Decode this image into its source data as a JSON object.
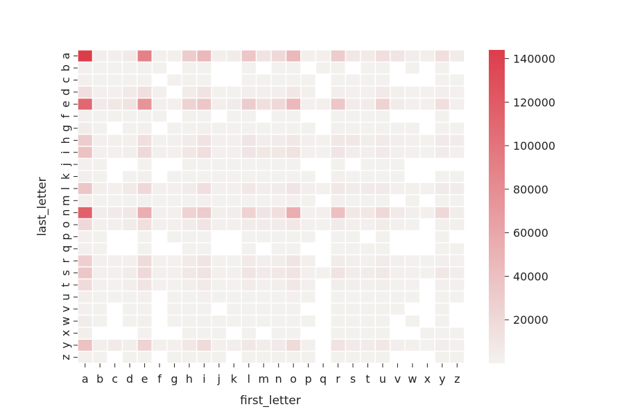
{
  "chart_data": {
    "type": "heatmap",
    "title": "",
    "xlabel": "first_letter",
    "ylabel": "last_letter",
    "x_categories": [
      "a",
      "b",
      "c",
      "d",
      "e",
      "f",
      "g",
      "h",
      "i",
      "j",
      "k",
      "l",
      "m",
      "n",
      "o",
      "p",
      "q",
      "r",
      "s",
      "t",
      "u",
      "v",
      "w",
      "x",
      "y",
      "z"
    ],
    "y_categories": [
      "a",
      "b",
      "c",
      "d",
      "e",
      "f",
      "g",
      "h",
      "i",
      "j",
      "k",
      "l",
      "m",
      "n",
      "o",
      "p",
      "q",
      "r",
      "s",
      "t",
      "u",
      "v",
      "w",
      "x",
      "y",
      "z"
    ],
    "matrix": [
      [
        144000,
        3000,
        3000,
        6000,
        90000,
        2000,
        2000,
        30000,
        45000,
        3000,
        5000,
        35000,
        12000,
        20000,
        45000,
        2000,
        2000,
        30000,
        8000,
        6000,
        15000,
        10000,
        4000,
        3000,
        15000,
        5000
      ],
      [
        2000,
        1000,
        1000,
        1000,
        2000,
        1000,
        null,
        1000,
        1000,
        null,
        null,
        1000,
        null,
        1000,
        1000,
        null,
        1000,
        1000,
        null,
        1000,
        1000,
        null,
        1000,
        null,
        1000,
        null
      ],
      [
        2000,
        1000,
        1000,
        1000,
        1000,
        null,
        1000,
        1000,
        1000,
        null,
        null,
        1000,
        1000,
        1000,
        1000,
        1000,
        null,
        1000,
        1000,
        1000,
        1000,
        null,
        null,
        null,
        1000,
        1000
      ],
      [
        15000,
        2000,
        2000,
        6000,
        15000,
        2000,
        null,
        5000,
        12000,
        1000,
        1000,
        3000,
        3000,
        3000,
        8000,
        2000,
        null,
        3000,
        2000,
        2000,
        6000,
        2000,
        1000,
        1000,
        3000,
        2000
      ],
      [
        110000,
        6000,
        8000,
        12000,
        75000,
        2000,
        2000,
        25000,
        35000,
        3000,
        5000,
        30000,
        15000,
        20000,
        45000,
        2000,
        2000,
        35000,
        5000,
        5000,
        25000,
        5000,
        2000,
        2000,
        15000,
        2000
      ],
      [
        2000,
        1000,
        1000,
        1000,
        1000,
        1000,
        null,
        1000,
        1000,
        null,
        1000,
        1000,
        null,
        1000,
        1000,
        null,
        null,
        1000,
        1000,
        1000,
        1000,
        null,
        null,
        null,
        1000,
        null
      ],
      [
        5000,
        1000,
        null,
        1000,
        2000,
        null,
        1000,
        1000,
        2000,
        1000,
        1000,
        1000,
        1000,
        1000,
        1000,
        1000,
        null,
        2000,
        1000,
        1000,
        1000,
        1000,
        1000,
        null,
        1000,
        1000
      ],
      [
        30000,
        2000,
        2000,
        2000,
        15000,
        1000,
        2000,
        5000,
        12000,
        2000,
        2000,
        10000,
        4000,
        5000,
        8000,
        2000,
        1000,
        8000,
        8000,
        4000,
        6000,
        3000,
        2000,
        1000,
        6000,
        5000
      ],
      [
        38000,
        2000,
        2000,
        3000,
        20000,
        2000,
        2000,
        8000,
        15000,
        2000,
        2000,
        10000,
        8000,
        8000,
        12000,
        2000,
        1000,
        10000,
        4000,
        3000,
        6000,
        2000,
        2000,
        1000,
        5000,
        2000
      ],
      [
        2000,
        1000,
        null,
        null,
        1000,
        null,
        null,
        1000,
        1000,
        1000,
        1000,
        1000,
        1000,
        1000,
        1000,
        null,
        null,
        1000,
        null,
        1000,
        1000,
        1000,
        null,
        null,
        null,
        null
      ],
      [
        3000,
        1000,
        null,
        1000,
        2000,
        null,
        1000,
        1000,
        1000,
        1000,
        1000,
        1000,
        1000,
        1000,
        1000,
        1000,
        null,
        2000,
        1000,
        1000,
        1000,
        1000,
        null,
        null,
        1000,
        1000
      ],
      [
        35000,
        3000,
        2000,
        6000,
        20000,
        2000,
        2000,
        5000,
        15000,
        2000,
        2000,
        8000,
        4000,
        5000,
        10000,
        3000,
        1000,
        8000,
        5000,
        6000,
        6000,
        2000,
        2000,
        1000,
        6000,
        5000
      ],
      [
        3000,
        1000,
        1000,
        1000,
        2000,
        1000,
        1000,
        1000,
        2000,
        1000,
        1000,
        1000,
        1000,
        1000,
        2000,
        1000,
        null,
        2000,
        1000,
        1000,
        1000,
        null,
        1000,
        null,
        1000,
        1000
      ],
      [
        115000,
        4000,
        6000,
        8000,
        55000,
        2000,
        2000,
        25000,
        30000,
        3000,
        4000,
        25000,
        10000,
        15000,
        55000,
        2000,
        2000,
        40000,
        8000,
        8000,
        20000,
        6000,
        3000,
        2000,
        20000,
        4000
      ],
      [
        20000,
        2000,
        2000,
        5000,
        15000,
        2000,
        2000,
        5000,
        10000,
        2000,
        2000,
        5000,
        5000,
        5000,
        8000,
        2000,
        1000,
        6000,
        3000,
        2000,
        5000,
        2000,
        1000,
        null,
        2000,
        2000
      ],
      [
        2000,
        1000,
        null,
        null,
        1000,
        null,
        1000,
        1000,
        1000,
        null,
        null,
        1000,
        1000,
        1000,
        1000,
        1000,
        null,
        1000,
        1000,
        null,
        1000,
        null,
        null,
        null,
        1000,
        null
      ],
      [
        2000,
        1000,
        null,
        null,
        1000,
        null,
        null,
        1000,
        1000,
        null,
        null,
        1000,
        null,
        1000,
        1000,
        null,
        null,
        1000,
        1000,
        1000,
        1000,
        null,
        null,
        null,
        1000,
        1000
      ],
      [
        28000,
        2000,
        2000,
        2000,
        18000,
        1000,
        1000,
        6000,
        10000,
        1000,
        1000,
        6000,
        3000,
        4000,
        10000,
        2000,
        null,
        5000,
        3000,
        2000,
        5000,
        2000,
        1000,
        1000,
        3000,
        2000
      ],
      [
        35000,
        2000,
        2000,
        5000,
        20000,
        2000,
        2000,
        8000,
        12000,
        2000,
        2000,
        10000,
        6000,
        8000,
        12000,
        2000,
        1000,
        12000,
        5000,
        5000,
        8000,
        2000,
        2000,
        1000,
        8000,
        4000
      ],
      [
        18000,
        2000,
        1000,
        3000,
        10000,
        1000,
        1000,
        3000,
        6000,
        1000,
        1000,
        5000,
        2000,
        3000,
        8000,
        2000,
        null,
        4000,
        3000,
        2000,
        3000,
        1000,
        1000,
        null,
        2000,
        2000
      ],
      [
        3000,
        1000,
        1000,
        1000,
        2000,
        null,
        1000,
        1000,
        2000,
        1000,
        1000,
        1000,
        1000,
        1000,
        2000,
        1000,
        null,
        1000,
        1000,
        1000,
        1000,
        1000,
        1000,
        null,
        1000,
        1000
      ],
      [
        2000,
        1000,
        null,
        1000,
        1000,
        null,
        1000,
        1000,
        1000,
        null,
        1000,
        1000,
        1000,
        1000,
        1000,
        null,
        null,
        1000,
        1000,
        1000,
        1000,
        1000,
        null,
        null,
        1000,
        null
      ],
      [
        5000,
        1000,
        null,
        1000,
        2000,
        null,
        1000,
        1000,
        2000,
        1000,
        1000,
        1000,
        1000,
        1000,
        1000,
        1000,
        null,
        1000,
        1000,
        1000,
        1000,
        null,
        1000,
        null,
        1000,
        null
      ],
      [
        3000,
        null,
        null,
        null,
        1000,
        null,
        null,
        1000,
        1000,
        1000,
        null,
        1000,
        null,
        1000,
        1000,
        null,
        null,
        1000,
        1000,
        1000,
        1000,
        null,
        null,
        1000,
        1000,
        1000
      ],
      [
        38000,
        3000,
        6000,
        3000,
        25000,
        2000,
        2000,
        8000,
        18000,
        2000,
        3000,
        8000,
        4000,
        6000,
        18000,
        2000,
        null,
        12000,
        6000,
        5000,
        8000,
        3000,
        2000,
        1000,
        4000,
        2000
      ],
      [
        2000,
        1000,
        null,
        1000,
        1000,
        null,
        1000,
        1000,
        1000,
        1000,
        null,
        1000,
        1000,
        1000,
        1000,
        1000,
        null,
        1000,
        1000,
        1000,
        1000,
        null,
        null,
        null,
        1000,
        1000
      ]
    ],
    "colorbar": {
      "min": 0,
      "max": 144000,
      "ticks": [
        20000,
        40000,
        60000,
        80000,
        100000,
        120000,
        140000
      ],
      "tick_labels": [
        "20000",
        "40000",
        "60000",
        "80000",
        "100000",
        "120000",
        "140000"
      ],
      "color_low": "#f2f2ef",
      "color_high": "#dc3d4a"
    },
    "grid": false,
    "legend": "colorbar-right"
  }
}
